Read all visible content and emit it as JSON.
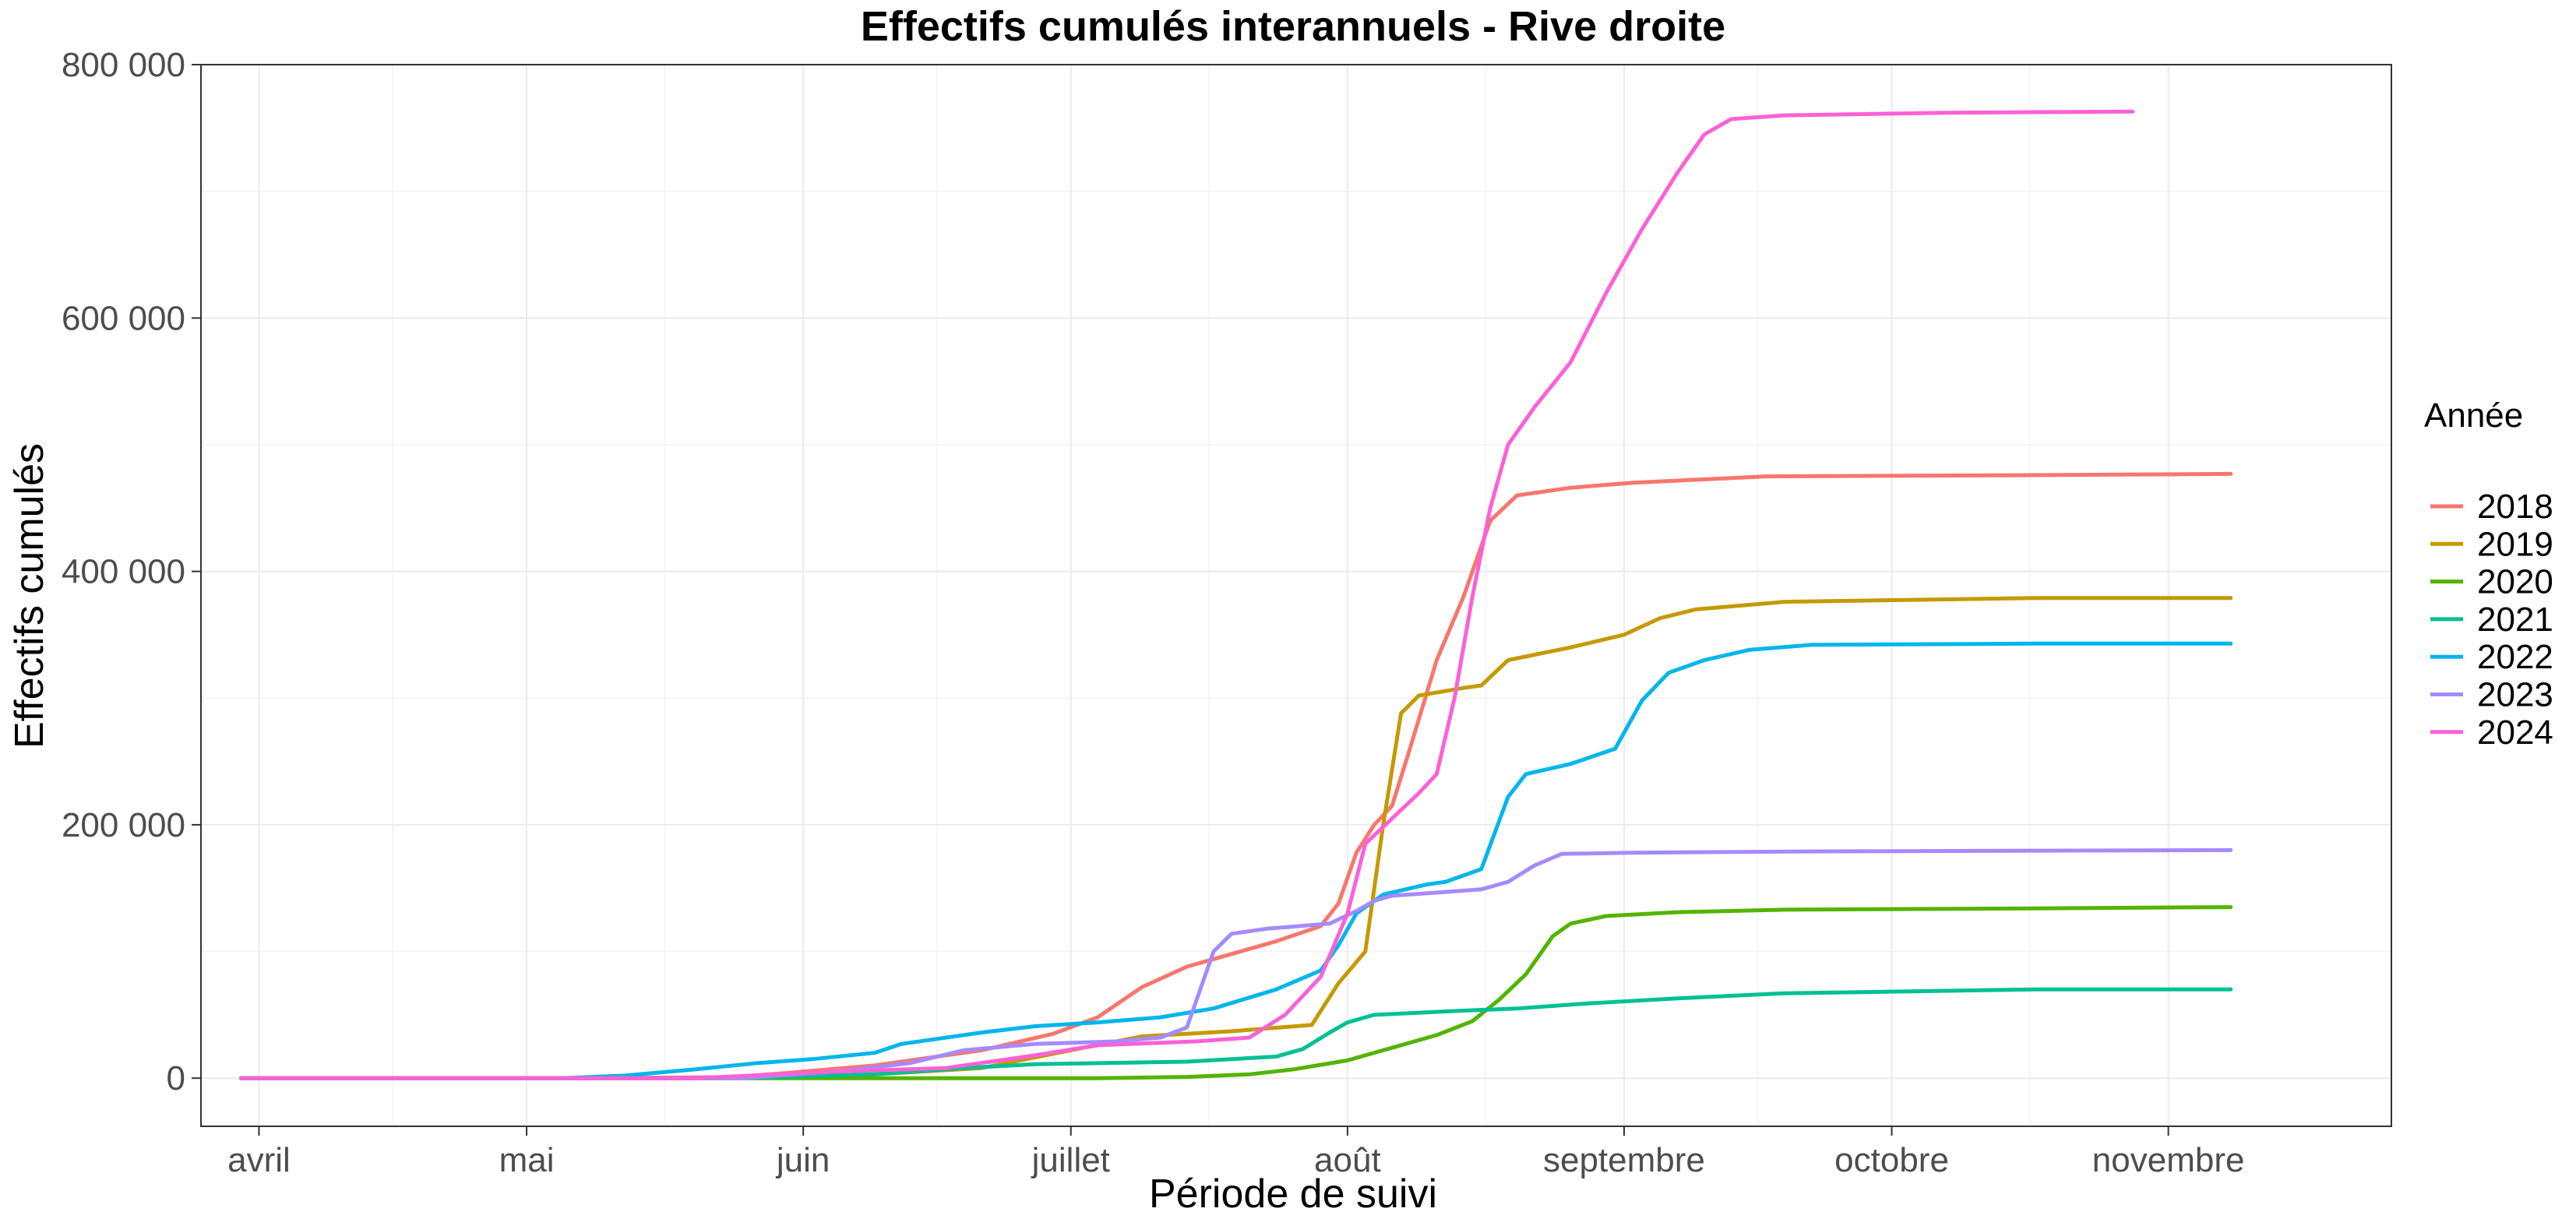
{
  "chart_data": {
    "type": "line",
    "title": "Effectifs cumulés interannuels - Rive droite",
    "xlabel": "Période de suivi",
    "ylabel": "Effectifs cumulés",
    "x_unit": "day-of-year",
    "xlim": [
      84.5,
      330
    ],
    "ylim": [
      -38000,
      800000
    ],
    "grid": true,
    "x_ticks": [
      {
        "doy": 91,
        "label": "avril"
      },
      {
        "doy": 121,
        "label": "mai"
      },
      {
        "doy": 152,
        "label": "juin"
      },
      {
        "doy": 182,
        "label": "juillet"
      },
      {
        "doy": 213,
        "label": "août"
      },
      {
        "doy": 244,
        "label": "septembre"
      },
      {
        "doy": 274,
        "label": "octobre"
      },
      {
        "doy": 305,
        "label": "novembre"
      }
    ],
    "y_ticks": [
      {
        "value": 0,
        "label": "0"
      },
      {
        "value": 200000,
        "label": "200 000"
      },
      {
        "value": 400000,
        "label": "400 000"
      },
      {
        "value": 600000,
        "label": "600 000"
      },
      {
        "value": 800000,
        "label": "800 000"
      }
    ],
    "legend": {
      "title": "Année",
      "position": "right"
    },
    "series": [
      {
        "name": "2018",
        "color": "#F8766D",
        "points": [
          [
            89,
            0
          ],
          [
            125,
            0
          ],
          [
            144,
            800
          ],
          [
            150,
            4000
          ],
          [
            160,
            10000
          ],
          [
            172,
            22000
          ],
          [
            180,
            35000
          ],
          [
            185,
            48000
          ],
          [
            190,
            72000
          ],
          [
            195,
            88000
          ],
          [
            200,
            98000
          ],
          [
            205,
            108000
          ],
          [
            210,
            120000
          ],
          [
            212,
            138000
          ],
          [
            214,
            178000
          ],
          [
            216,
            200000
          ],
          [
            218,
            215000
          ],
          [
            220,
            260000
          ],
          [
            223,
            330000
          ],
          [
            226,
            380000
          ],
          [
            229,
            440000
          ],
          [
            232,
            460000
          ],
          [
            238,
            466000
          ],
          [
            245,
            470000
          ],
          [
            260,
            475000
          ],
          [
            290,
            476000
          ],
          [
            312,
            477000
          ]
        ]
      },
      {
        "name": "2019",
        "color": "#C49A00",
        "points": [
          [
            89,
            0
          ],
          [
            145,
            0
          ],
          [
            160,
            3000
          ],
          [
            172,
            8000
          ],
          [
            182,
            22000
          ],
          [
            190,
            33000
          ],
          [
            200,
            37000
          ],
          [
            209,
            42000
          ],
          [
            212,
            75000
          ],
          [
            215,
            100000
          ],
          [
            217,
            200000
          ],
          [
            219,
            288000
          ],
          [
            221,
            302000
          ],
          [
            226,
            308000
          ],
          [
            228,
            310000
          ],
          [
            231,
            330000
          ],
          [
            238,
            340000
          ],
          [
            244,
            350000
          ],
          [
            248,
            363000
          ],
          [
            252,
            370000
          ],
          [
            262,
            376000
          ],
          [
            290,
            379000
          ],
          [
            312,
            379000
          ]
        ]
      },
      {
        "name": "2020",
        "color": "#53B400",
        "points": [
          [
            89,
            0
          ],
          [
            185,
            0
          ],
          [
            195,
            1000
          ],
          [
            202,
            3000
          ],
          [
            207,
            7000
          ],
          [
            213,
            14000
          ],
          [
            217,
            22000
          ],
          [
            223,
            34000
          ],
          [
            227,
            45000
          ],
          [
            230,
            62000
          ],
          [
            233,
            82000
          ],
          [
            236,
            112000
          ],
          [
            238,
            122000
          ],
          [
            242,
            128000
          ],
          [
            250,
            131000
          ],
          [
            262,
            133000
          ],
          [
            290,
            134000
          ],
          [
            312,
            135000
          ]
        ]
      },
      {
        "name": "2021",
        "color": "#00C094",
        "points": [
          [
            89,
            0
          ],
          [
            145,
            0
          ],
          [
            160,
            3000
          ],
          [
            170,
            8000
          ],
          [
            178,
            11000
          ],
          [
            195,
            13000
          ],
          [
            205,
            17000
          ],
          [
            208,
            23000
          ],
          [
            211,
            36000
          ],
          [
            213,
            44000
          ],
          [
            216,
            50000
          ],
          [
            225,
            53000
          ],
          [
            232,
            55000
          ],
          [
            240,
            59000
          ],
          [
            250,
            63000
          ],
          [
            262,
            67000
          ],
          [
            290,
            70000
          ],
          [
            312,
            70000
          ]
        ]
      },
      {
        "name": "2022",
        "color": "#00B6EB",
        "points": [
          [
            89,
            0
          ],
          [
            125,
            0
          ],
          [
            132,
            2000
          ],
          [
            140,
            7000
          ],
          [
            147,
            12000
          ],
          [
            153,
            15000
          ],
          [
            160,
            20000
          ],
          [
            163,
            27000
          ],
          [
            172,
            36000
          ],
          [
            178,
            41000
          ],
          [
            185,
            44000
          ],
          [
            192,
            48000
          ],
          [
            198,
            55000
          ],
          [
            205,
            70000
          ],
          [
            210,
            85000
          ],
          [
            212,
            105000
          ],
          [
            214,
            130000
          ],
          [
            217,
            145000
          ],
          [
            222,
            153000
          ],
          [
            224,
            155000
          ],
          [
            228,
            165000
          ],
          [
            231,
            222000
          ],
          [
            233,
            240000
          ],
          [
            238,
            248000
          ],
          [
            243,
            260000
          ],
          [
            246,
            298000
          ],
          [
            249,
            320000
          ],
          [
            253,
            330000
          ],
          [
            258,
            338000
          ],
          [
            265,
            342000
          ],
          [
            290,
            343000
          ],
          [
            312,
            343000
          ]
        ]
      },
      {
        "name": "2023",
        "color": "#A58AFF",
        "points": [
          [
            89,
            0
          ],
          [
            145,
            0
          ],
          [
            157,
            6000
          ],
          [
            164,
            12000
          ],
          [
            170,
            22000
          ],
          [
            178,
            27000
          ],
          [
            187,
            29000
          ],
          [
            192,
            32000
          ],
          [
            195,
            40000
          ],
          [
            198,
            100000
          ],
          [
            200,
            114000
          ],
          [
            204,
            118000
          ],
          [
            211,
            122000
          ],
          [
            214,
            132000
          ],
          [
            216,
            140000
          ],
          [
            218,
            144000
          ],
          [
            224,
            147000
          ],
          [
            228,
            149000
          ],
          [
            231,
            155000
          ],
          [
            234,
            168000
          ],
          [
            237,
            177000
          ],
          [
            245,
            178000
          ],
          [
            265,
            179000
          ],
          [
            312,
            180000
          ]
        ]
      },
      {
        "name": "2024",
        "color": "#FB61D7",
        "points": [
          [
            89,
            0
          ],
          [
            140,
            0
          ],
          [
            155,
            5000
          ],
          [
            168,
            8000
          ],
          [
            178,
            18000
          ],
          [
            185,
            26000
          ],
          [
            196,
            29000
          ],
          [
            202,
            32000
          ],
          [
            206,
            50000
          ],
          [
            210,
            80000
          ],
          [
            213,
            130000
          ],
          [
            215,
            185000
          ],
          [
            218,
            205000
          ],
          [
            221,
            225000
          ],
          [
            223,
            240000
          ],
          [
            225,
            300000
          ],
          [
            227,
            380000
          ],
          [
            229,
            450000
          ],
          [
            231,
            500000
          ],
          [
            234,
            530000
          ],
          [
            238,
            565000
          ],
          [
            242,
            620000
          ],
          [
            246,
            670000
          ],
          [
            250,
            715000
          ],
          [
            253,
            745000
          ],
          [
            256,
            757000
          ],
          [
            262,
            760000
          ],
          [
            280,
            762000
          ],
          [
            301,
            763000
          ]
        ]
      }
    ]
  }
}
